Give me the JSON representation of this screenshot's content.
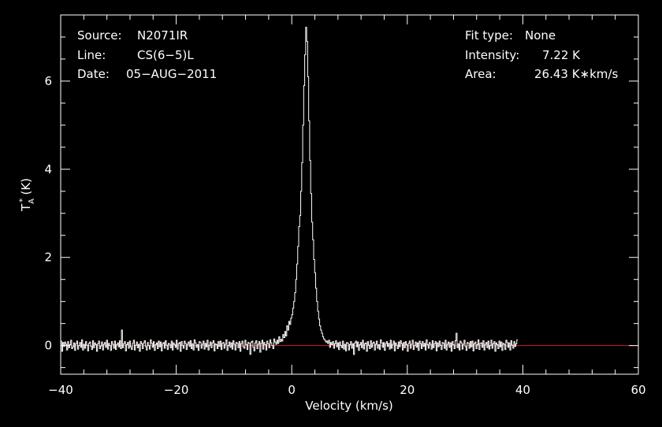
{
  "chart_data": {
    "type": "line",
    "xlabel": "Velocity (km/s)",
    "ylabel": "T",
    "ylabel_sub": "A",
    "ylabel_sup": "*",
    "ylabel_unit": "(K)",
    "xlim": [
      -40,
      60
    ],
    "ylim": [
      -0.65,
      7.5
    ],
    "xticks": [
      -40,
      -20,
      0,
      20,
      40,
      60
    ],
    "xtick_labels": [
      "−40",
      "−20",
      "0",
      "20",
      "40",
      "60"
    ],
    "yticks": [
      0,
      2,
      4,
      6
    ],
    "ytick_labels": [
      "0",
      "2",
      "4",
      "6"
    ],
    "baseline": 0,
    "grid": false,
    "colors": {
      "background": "#000000",
      "spectrum": "#ffffff",
      "baseline": "#cc1f1f",
      "axes": "#ffffff"
    },
    "series": [
      {
        "v_start": -40,
        "v_step": 0.1724,
        "peak_velocity": 9.8,
        "peak_value": 7.22,
        "values": [
          0.1,
          -0.13,
          0.07,
          -0.02,
          0.08,
          0.03,
          -0.1,
          0.09,
          -0.05,
          0.02,
          0.12,
          -0.07,
          -0.03,
          0.06,
          -0.11,
          0.04,
          0.1,
          -0.08,
          0.0,
          0.07,
          -0.04,
          0.13,
          -0.1,
          0.03,
          -0.06,
          0.09,
          0.01,
          -0.12,
          0.05,
          0.08,
          -0.02,
          -0.09,
          0.11,
          -0.05,
          0.06,
          0.02,
          -0.13,
          0.04,
          0.1,
          -0.07,
          -0.01,
          0.08,
          -0.1,
          0.03,
          0.07,
          -0.04,
          0.12,
          -0.08,
          0.05,
          0.0,
          -0.11,
          0.09,
          0.03,
          -0.06,
          0.1,
          -0.09,
          0.02,
          0.06,
          -0.03,
          0.11,
          -0.07,
          0.35,
          -0.05,
          0.04,
          0.09,
          -0.12,
          0.02,
          0.07,
          -0.06,
          0.1,
          -0.03,
          -0.09,
          0.05,
          0.12,
          -0.1,
          0.01,
          0.08,
          -0.05,
          0.03,
          -0.13,
          0.09,
          0.04,
          -0.07,
          0.06,
          0.11,
          -0.02,
          -0.1,
          0.07,
          0.0,
          -0.08,
          0.13,
          0.05,
          -0.04,
          0.09,
          -0.11,
          0.02,
          0.06,
          -0.07,
          0.1,
          -0.03,
          0.08,
          -0.12,
          0.04,
          0.07,
          -0.06,
          0.11,
          0.01,
          -0.09,
          0.05,
          0.03,
          -0.05,
          0.1,
          -0.1,
          0.06,
          0.02,
          -0.04,
          0.12,
          -0.08,
          0.04,
          0.07,
          -0.13,
          0.09,
          0.0,
          -0.06,
          0.1,
          0.05,
          -0.09,
          0.03,
          0.08,
          -0.02,
          0.11,
          -0.07,
          0.04,
          -0.1,
          0.13,
          0.06,
          -0.04,
          0.02,
          -0.11,
          0.09,
          0.07,
          -0.06,
          0.03,
          0.1,
          -0.08,
          0.05,
          -0.03,
          0.12,
          -0.1,
          0.01,
          0.08,
          -0.05,
          0.06,
          0.11,
          -0.12,
          0.04,
          0.02,
          -0.07,
          0.09,
          -0.02,
          0.1,
          -0.09,
          0.05,
          0.07,
          -0.06,
          0.03,
          0.13,
          -0.11,
          0.0,
          0.08,
          -0.04,
          0.06,
          -0.08,
          0.11,
          0.03,
          -0.1,
          0.07,
          0.05,
          -0.05,
          0.09,
          -0.13,
          0.04,
          0.1,
          -0.03,
          -0.06,
          0.12,
          0.02,
          -0.09,
          0.07,
          0.05,
          -0.2,
          0.08,
          0.1,
          -0.04,
          -0.12,
          0.06,
          0.11,
          -0.07,
          0.03,
          0.09,
          -0.15,
          0.05,
          0.12,
          -0.08,
          0.07,
          0.02,
          -0.1,
          0.1,
          0.04,
          -0.05,
          0.13,
          0.06,
          0.0,
          -0.07,
          0.15,
          0.08,
          0.03,
          0.12,
          0.05,
          0.2,
          0.09,
          0.14,
          0.1,
          0.25,
          0.18,
          0.32,
          0.22,
          0.45,
          0.35,
          0.55,
          0.48,
          0.62,
          0.7,
          0.85,
          1.0,
          1.2,
          1.5,
          1.85,
          2.25,
          2.7,
          2.95,
          3.5,
          4.15,
          5.0,
          5.9,
          6.6,
          7.22,
          6.9,
          6.1,
          5.1,
          4.2,
          3.45,
          2.8,
          2.4,
          1.95,
          1.65,
          1.3,
          1.0,
          0.78,
          0.6,
          0.45,
          0.35,
          0.28,
          0.2,
          0.15,
          0.12,
          0.08,
          0.1,
          0.05,
          0.12,
          -0.04,
          0.07,
          0.02,
          0.09,
          -0.06,
          0.04,
          0.11,
          -0.03,
          0.06,
          -0.09,
          0.08,
          0.0,
          -0.05,
          0.1,
          -0.08,
          0.03,
          -0.12,
          0.07,
          0.05,
          -0.1,
          0.02,
          0.09,
          -0.06,
          0.04,
          -0.2,
          0.06,
          0.1,
          -0.03,
          0.08,
          -0.11,
          0.02,
          0.07,
          -0.05,
          0.12,
          -0.08,
          0.04,
          0.06,
          -0.13,
          0.09,
          0.01,
          -0.07,
          0.11,
          -0.04,
          0.05,
          0.08,
          -0.1,
          0.03,
          0.1,
          -0.06,
          0.02,
          -0.09,
          0.13,
          0.06,
          -0.04,
          0.07,
          -0.11,
          0.04,
          0.09,
          -0.02,
          0.05,
          -0.08,
          0.12,
          -0.06,
          0.03,
          0.1,
          -0.12,
          0.06,
          0.01,
          -0.07,
          0.08,
          -0.03,
          0.11,
          0.04,
          -0.1,
          0.07,
          -0.05,
          0.09,
          0.02,
          -0.13,
          0.05,
          0.1,
          -0.06,
          0.03,
          0.12,
          -0.09,
          0.0,
          0.08,
          -0.04,
          0.06,
          -0.11,
          0.1,
          0.04,
          -0.07,
          0.09,
          -0.02,
          0.05,
          -0.1,
          0.13,
          0.02,
          -0.06,
          0.07,
          0.03,
          -0.08,
          0.11,
          -0.05,
          0.04,
          0.09,
          -0.12,
          0.06,
          -0.03,
          0.1,
          0.01,
          -0.09,
          0.07,
          0.05,
          -0.06,
          0.12,
          -0.1,
          0.03,
          0.08,
          -0.04,
          0.06,
          -0.13,
          0.09,
          0.02,
          -0.07,
          0.11,
          0.28,
          -0.05,
          0.04,
          -0.1,
          0.1,
          0.06,
          -0.08,
          0.03,
          0.12,
          -0.02,
          -0.11,
          0.07,
          0.05,
          -0.06,
          0.09,
          -0.03,
          0.1,
          -0.12,
          0.04,
          0.08,
          -0.07,
          0.02,
          0.13,
          -0.09,
          0.05,
          0.06,
          -0.04,
          0.11,
          -0.1,
          0.03,
          0.07,
          -0.05,
          0.1,
          -0.08,
          0.0,
          0.12,
          -0.06,
          0.04,
          0.09,
          -0.13,
          0.06,
          0.02,
          -0.07,
          0.1,
          -0.03,
          0.08,
          -0.11,
          0.05,
          0.03,
          -0.09,
          0.12,
          0.07,
          -0.04,
          0.06,
          -0.1,
          0.11,
          0.01,
          -0.06,
          0.09,
          -0.02,
          0.04,
          0.13
        ]
      }
    ]
  },
  "header": {
    "source_label": "Source:",
    "source_value": "N2071IR",
    "line_label": "Line:",
    "line_value": "CS(6−5)L",
    "date_label": "Date:",
    "date_value": "05−AUG−2011",
    "fit_label": "Fit type:",
    "fit_value": "None",
    "intensity_label": "Intensity:",
    "intensity_value": "7.22 K",
    "area_label": "Area:",
    "area_value": "26.43 K∗km/s"
  }
}
